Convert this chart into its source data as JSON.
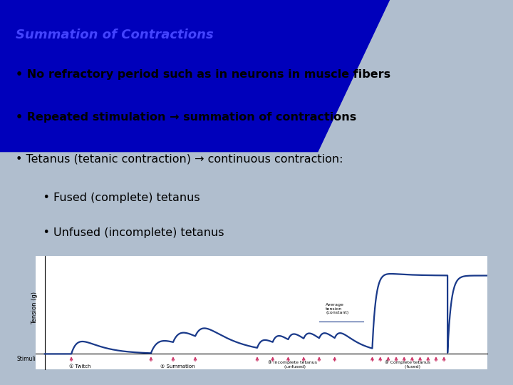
{
  "bg_color": "#b0bece",
  "title": "Summation of Contractions",
  "title_color": "#4444ff",
  "title_bg": "#0000bb",
  "bullet_color": "#000000",
  "bullet_font_size": 11.5,
  "title_font_size": 13,
  "line_color": "#1a3a8a",
  "stimuli_color": "#cc3366",
  "axis_label": "Tension (g)",
  "stimuli_label": "Stimuli",
  "avg_tension_label": "Average\ntension\n(constant)",
  "section_labels": [
    "① Twitch",
    "② Summation",
    "③ Incomplete tetanus\n   (unfused)",
    "④ Complete tetanus\n       (fused)"
  ],
  "bullets_on_blue": [
    "• No refractory period such as in neurons in muscle fibers",
    "• Repeated stimulation → summation of contractions"
  ],
  "bullets_off_blue": [
    "• Tetanus (tetanic contraction) → continuous contraction:",
    "    • Fused (complete) tetanus",
    "    • Unfused (incomplete) tetanus"
  ]
}
